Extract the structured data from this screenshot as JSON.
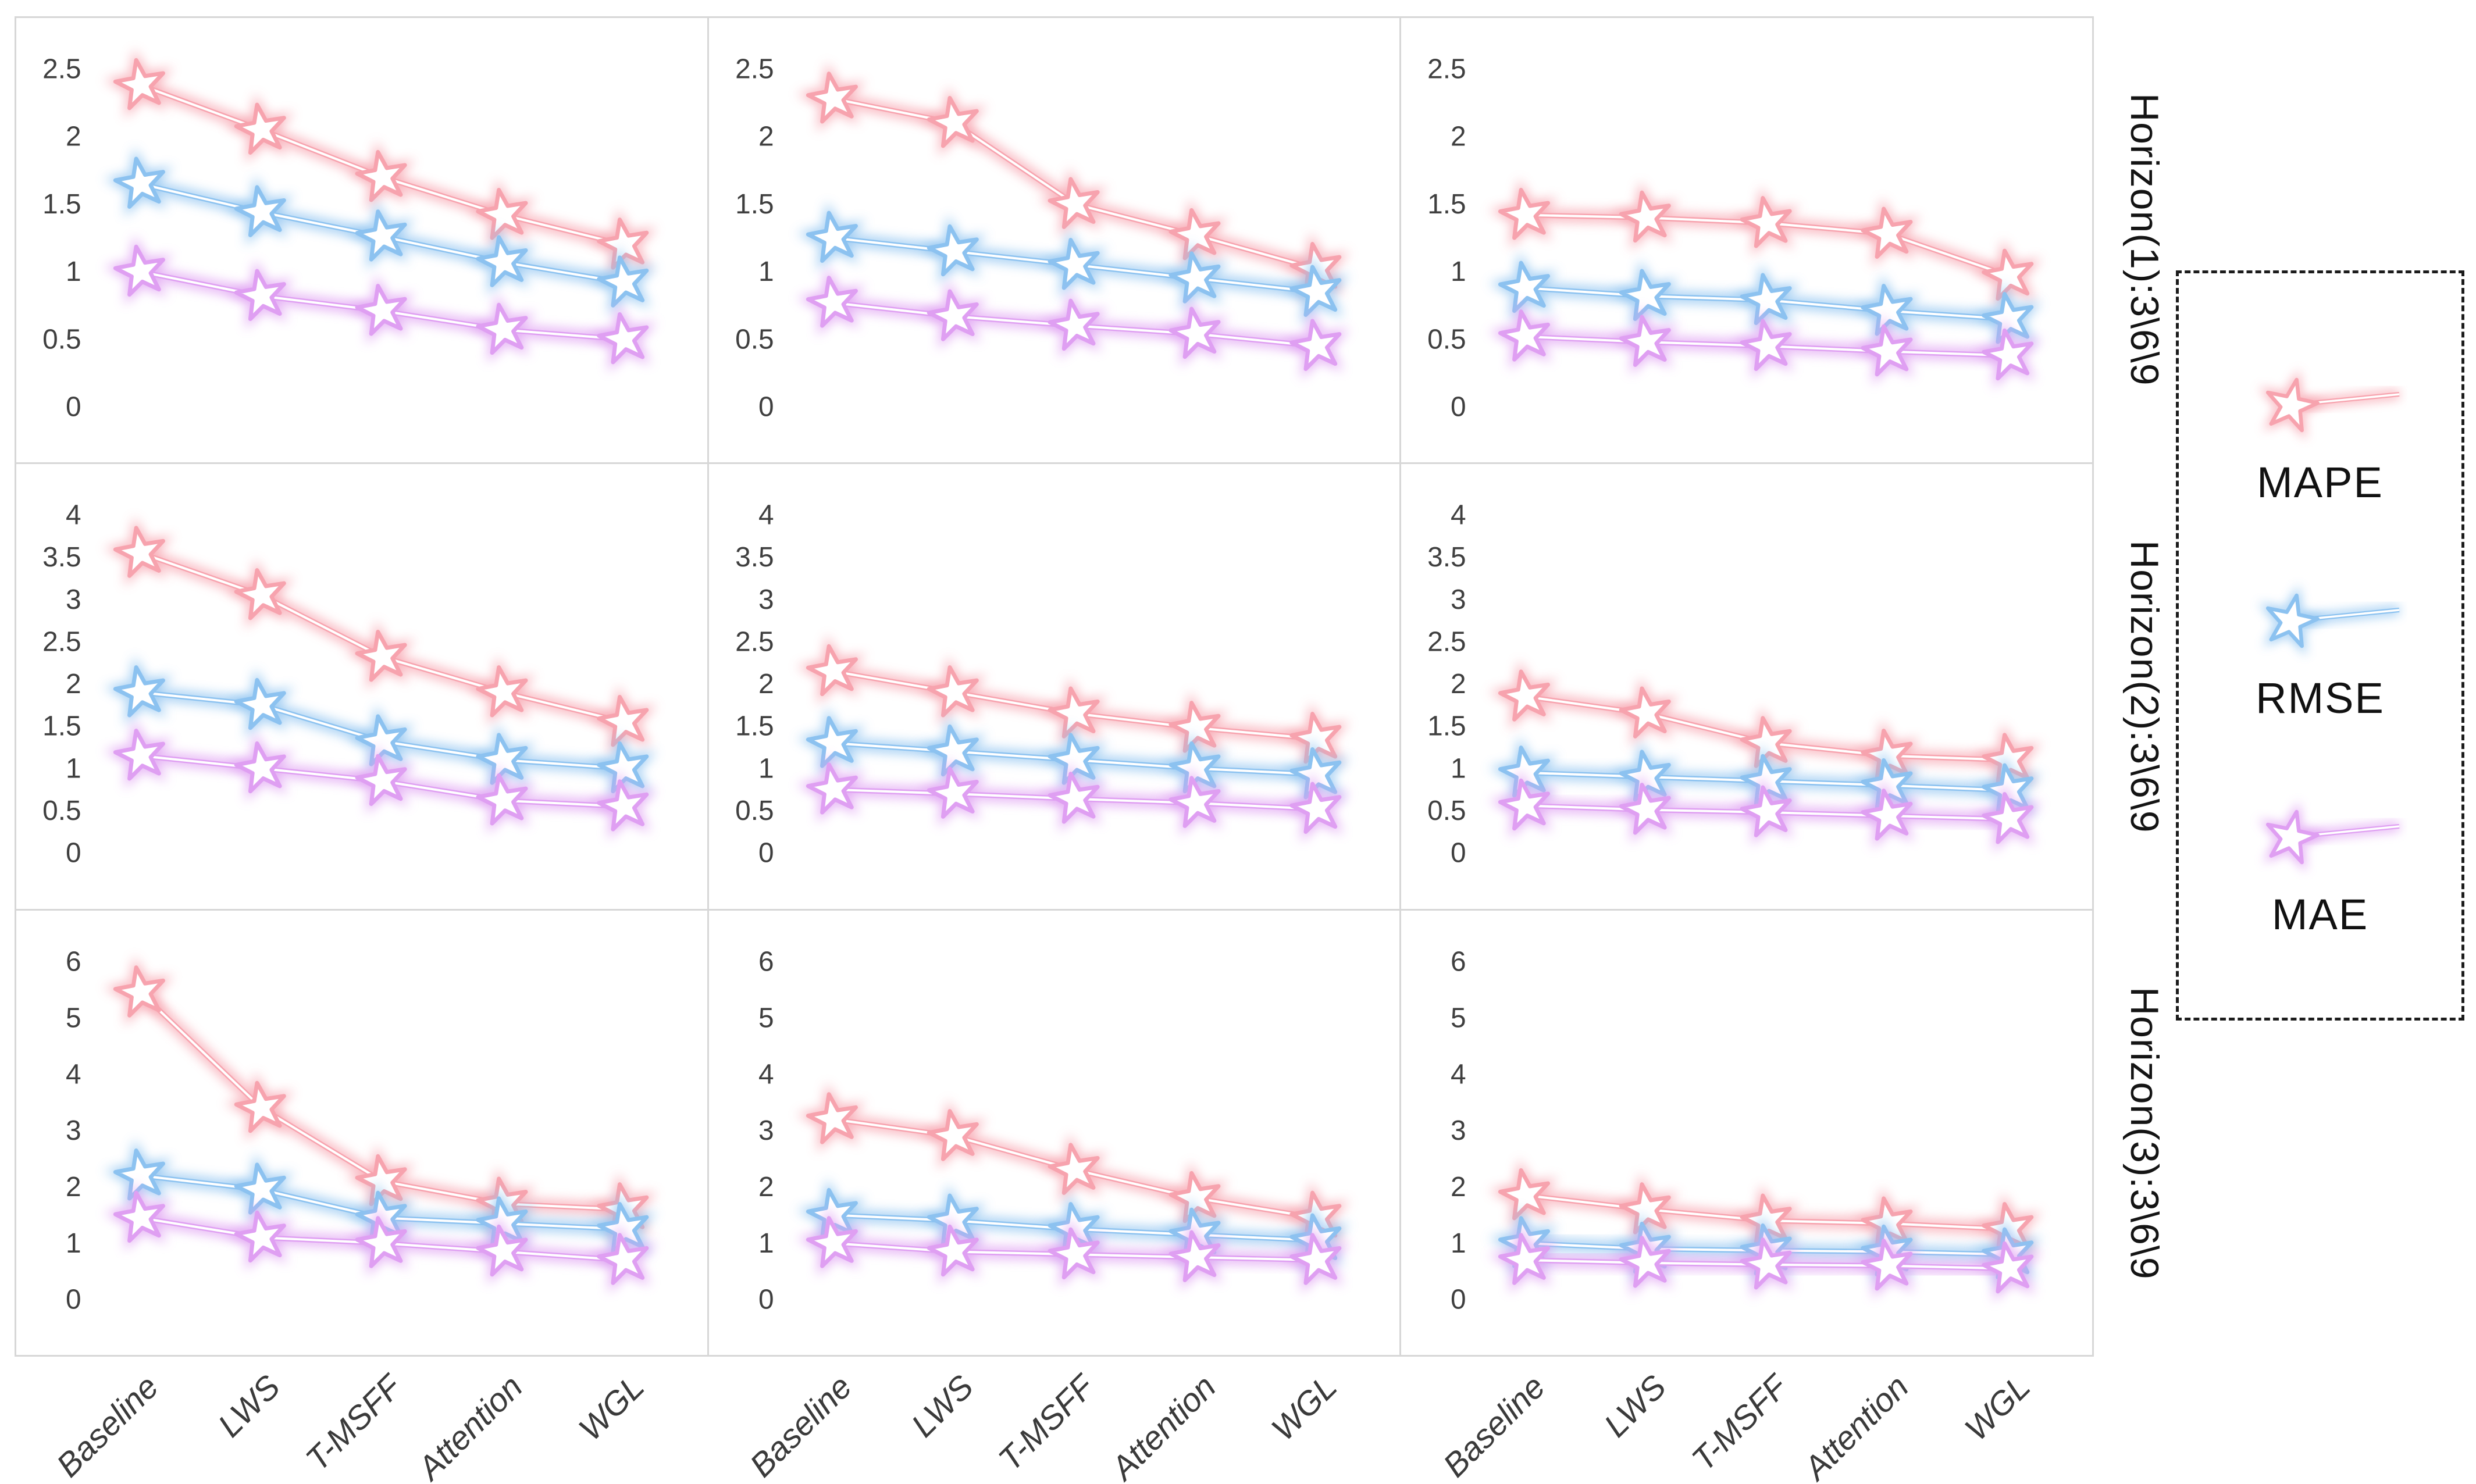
{
  "legend": {
    "items": [
      {
        "label": "MAPE",
        "color": "#f7a3ae"
      },
      {
        "label": "RMSE",
        "color": "#8cc2f0"
      },
      {
        "label": "MAE",
        "color": "#df9ff2"
      }
    ]
  },
  "chart_data": {
    "type": "line",
    "grid": "3x3 small multiples",
    "marker": "star",
    "legend_position": "right",
    "categories": [
      "Baseline",
      "LWS",
      "T-MSFF",
      "Attention",
      "WGL"
    ],
    "row_labels": [
      "Horizon(1):3\\6\\9",
      "Horizon(2):3\\6\\9",
      "Horizon(3):3\\6\\9"
    ],
    "series_names": [
      "MAPE",
      "RMSE",
      "MAE"
    ],
    "panels": [
      {
        "row": 1,
        "col": 1,
        "ylim": [
          0,
          2.5
        ],
        "yticks": [
          0,
          0.5,
          1,
          1.5,
          2,
          2.5
        ],
        "series": [
          {
            "name": "MAPE",
            "values": [
              2.38,
              2.05,
              1.7,
              1.42,
              1.2
            ]
          },
          {
            "name": "RMSE",
            "values": [
              1.65,
              1.44,
              1.26,
              1.07,
              0.92
            ]
          },
          {
            "name": "MAE",
            "values": [
              1.0,
              0.82,
              0.71,
              0.57,
              0.5
            ]
          }
        ]
      },
      {
        "row": 1,
        "col": 2,
        "ylim": [
          0,
          2.5
        ],
        "yticks": [
          0,
          0.5,
          1,
          1.5,
          2,
          2.5
        ],
        "series": [
          {
            "name": "MAPE",
            "values": [
              2.28,
              2.1,
              1.5,
              1.27,
              1.02
            ]
          },
          {
            "name": "RMSE",
            "values": [
              1.25,
              1.15,
              1.05,
              0.95,
              0.85
            ]
          },
          {
            "name": "MAE",
            "values": [
              0.77,
              0.67,
              0.6,
              0.54,
              0.45
            ]
          }
        ]
      },
      {
        "row": 1,
        "col": 3,
        "ylim": [
          0,
          2.5
        ],
        "yticks": [
          0,
          0.5,
          1,
          1.5,
          2,
          2.5
        ],
        "series": [
          {
            "name": "MAPE",
            "values": [
              1.42,
              1.4,
              1.36,
              1.28,
              0.97
            ]
          },
          {
            "name": "RMSE",
            "values": [
              0.88,
              0.82,
              0.79,
              0.71,
              0.65
            ]
          },
          {
            "name": "MAE",
            "values": [
              0.52,
              0.48,
              0.45,
              0.41,
              0.38
            ]
          }
        ]
      },
      {
        "row": 2,
        "col": 1,
        "ylim": [
          0,
          4
        ],
        "yticks": [
          0,
          0.5,
          1,
          1.5,
          2,
          2.5,
          3,
          3.5,
          4
        ],
        "series": [
          {
            "name": "MAPE",
            "values": [
              3.55,
              3.05,
              2.32,
              1.9,
              1.55
            ]
          },
          {
            "name": "RMSE",
            "values": [
              1.9,
              1.75,
              1.32,
              1.1,
              1.0
            ]
          },
          {
            "name": "MAE",
            "values": [
              1.15,
              1.0,
              0.85,
              0.62,
              0.55
            ]
          }
        ]
      },
      {
        "row": 2,
        "col": 2,
        "ylim": [
          0,
          4
        ],
        "yticks": [
          0,
          0.5,
          1,
          1.5,
          2,
          2.5,
          3,
          3.5,
          4
        ],
        "series": [
          {
            "name": "MAPE",
            "values": [
              2.15,
              1.9,
              1.65,
              1.48,
              1.35
            ]
          },
          {
            "name": "RMSE",
            "values": [
              1.3,
              1.2,
              1.1,
              1.0,
              0.93
            ]
          },
          {
            "name": "MAE",
            "values": [
              0.75,
              0.7,
              0.64,
              0.59,
              0.52
            ]
          }
        ]
      },
      {
        "row": 2,
        "col": 3,
        "ylim": [
          0,
          4
        ],
        "yticks": [
          0,
          0.5,
          1,
          1.5,
          2,
          2.5,
          3,
          3.5,
          4
        ],
        "series": [
          {
            "name": "MAPE",
            "values": [
              1.85,
              1.65,
              1.3,
              1.15,
              1.1
            ]
          },
          {
            "name": "RMSE",
            "values": [
              0.95,
              0.9,
              0.85,
              0.8,
              0.74
            ]
          },
          {
            "name": "MAE",
            "values": [
              0.56,
              0.51,
              0.48,
              0.44,
              0.4
            ]
          }
        ]
      },
      {
        "row": 3,
        "col": 1,
        "ylim": [
          0,
          6
        ],
        "yticks": [
          0,
          1,
          2,
          3,
          4,
          5,
          6
        ],
        "series": [
          {
            "name": "MAPE",
            "values": [
              5.45,
              3.4,
              2.1,
              1.7,
              1.6
            ]
          },
          {
            "name": "RMSE",
            "values": [
              2.2,
              1.95,
              1.45,
              1.35,
              1.25
            ]
          },
          {
            "name": "MAE",
            "values": [
              1.45,
              1.1,
              1.0,
              0.85,
              0.7
            ]
          }
        ]
      },
      {
        "row": 3,
        "col": 2,
        "ylim": [
          0,
          6
        ],
        "yticks": [
          0,
          1,
          2,
          3,
          4,
          5,
          6
        ],
        "series": [
          {
            "name": "MAPE",
            "values": [
              3.2,
              2.9,
              2.3,
              1.8,
              1.45
            ]
          },
          {
            "name": "RMSE",
            "values": [
              1.5,
              1.4,
              1.25,
              1.15,
              1.05
            ]
          },
          {
            "name": "MAE",
            "values": [
              1.0,
              0.85,
              0.8,
              0.75,
              0.7
            ]
          }
        ]
      },
      {
        "row": 3,
        "col": 3,
        "ylim": [
          0,
          6
        ],
        "yticks": [
          0,
          1,
          2,
          3,
          4,
          5,
          6
        ],
        "series": [
          {
            "name": "MAPE",
            "values": [
              1.85,
              1.6,
              1.4,
              1.35,
              1.25
            ]
          },
          {
            "name": "RMSE",
            "values": [
              1.0,
              0.9,
              0.87,
              0.85,
              0.8
            ]
          },
          {
            "name": "MAE",
            "values": [
              0.7,
              0.65,
              0.62,
              0.6,
              0.55
            ]
          }
        ]
      }
    ]
  }
}
